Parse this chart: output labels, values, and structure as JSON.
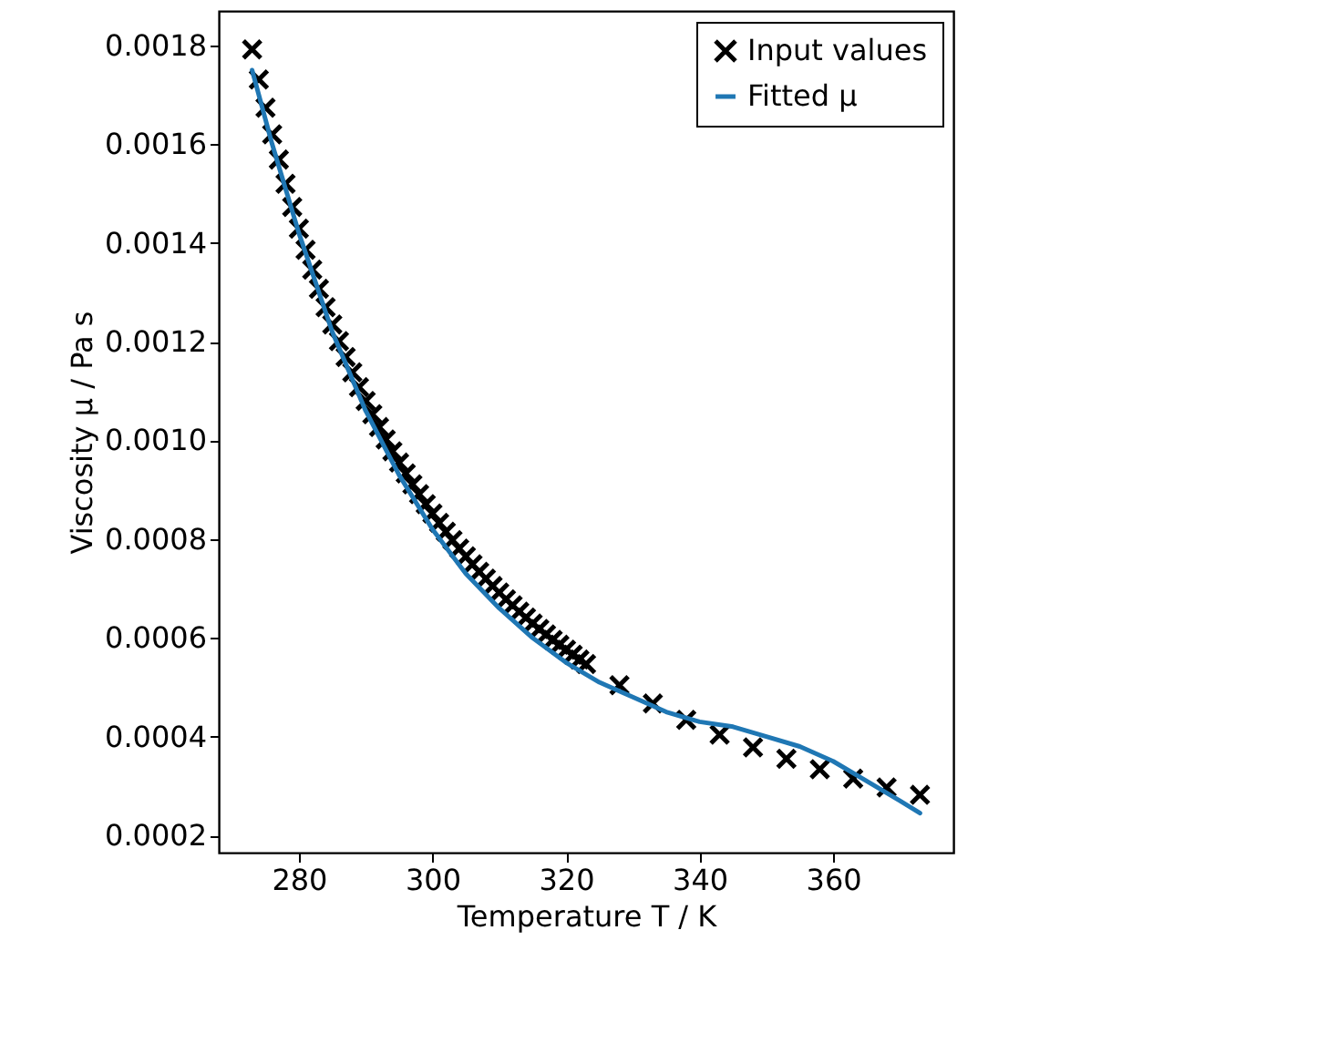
{
  "chart_data": {
    "type": "scatter",
    "xlabel": "Temperature T / K",
    "ylabel": "Viscosity μ / Pa s",
    "xlim": [
      268,
      378
    ],
    "ylim": [
      0.000165,
      0.00187
    ],
    "xticks": [
      280,
      300,
      320,
      340,
      360
    ],
    "yticks": [
      {
        "value": 0.0002,
        "label": "0.0002"
      },
      {
        "value": 0.0004,
        "label": "0.0004"
      },
      {
        "value": 0.0006,
        "label": "0.0006"
      },
      {
        "value": 0.0008,
        "label": "0.0008"
      },
      {
        "value": 0.001,
        "label": "0.0010"
      },
      {
        "value": 0.0012,
        "label": "0.0012"
      },
      {
        "value": 0.0014,
        "label": "0.0014"
      },
      {
        "value": 0.0016,
        "label": "0.0016"
      },
      {
        "value": 0.0018,
        "label": "0.0018"
      }
    ],
    "grid": false,
    "legend": "top right",
    "series": [
      {
        "name": "Input values",
        "marker": "cross",
        "color": "#000000",
        "x": [
          273,
          274,
          275,
          276,
          277,
          278,
          279,
          280,
          281,
          282,
          283,
          284,
          285,
          286,
          287,
          288,
          289,
          290,
          291,
          292,
          293,
          294,
          295,
          296,
          297,
          298,
          299,
          300,
          301,
          302,
          303,
          304,
          305,
          306,
          307,
          308,
          309,
          310,
          311,
          312,
          313,
          314,
          315,
          316,
          317,
          318,
          319,
          320,
          321,
          322,
          323,
          328,
          333,
          338,
          343,
          348,
          353,
          358,
          363,
          368,
          373
        ],
        "values": [
          0.001792,
          0.001731,
          0.001674,
          0.00162,
          0.001569,
          0.00152,
          0.001473,
          0.001429,
          0.001386,
          0.001346,
          0.001307,
          0.00127,
          0.001235,
          0.001201,
          0.001169,
          0.001138,
          0.001108,
          0.00108,
          0.001053,
          0.001027,
          0.001002,
          0.000978,
          0.000955,
          0.000933,
          0.000911,
          0.000891,
          0.000871,
          0.000852,
          0.000833,
          0.000815,
          0.000798,
          0.000781,
          0.000765,
          0.000749,
          0.000734,
          0.00072,
          0.000705,
          0.000692,
          0.000678,
          0.000666,
          0.000653,
          0.000641,
          0.000629,
          0.000618,
          0.000607,
          0.000596,
          0.000586,
          0.000576,
          0.000566,
          0.000556,
          0.000547,
          0.000504,
          0.000467,
          0.000434,
          0.000404,
          0.000378,
          0.000355,
          0.000334,
          0.000315,
          0.000297,
          0.000282
        ]
      },
      {
        "name": "Fitted μ",
        "type": "line",
        "marker": "none",
        "color": "#1f77b4",
        "x": [
          273,
          276,
          280,
          285,
          290,
          295,
          300,
          305,
          310,
          315,
          320,
          325,
          330,
          335,
          340,
          345,
          350,
          355,
          360,
          365,
          370,
          373
        ],
        "values": [
          0.00175,
          0.0016,
          0.00142,
          0.00122,
          0.00106,
          0.00093,
          0.00082,
          0.00073,
          0.00066,
          0.0006,
          0.00055,
          0.00051,
          0.00048,
          0.00045,
          0.00043,
          0.00042,
          0.0004,
          0.00038,
          0.00035,
          0.00031,
          0.00027,
          0.000245
        ]
      }
    ]
  }
}
